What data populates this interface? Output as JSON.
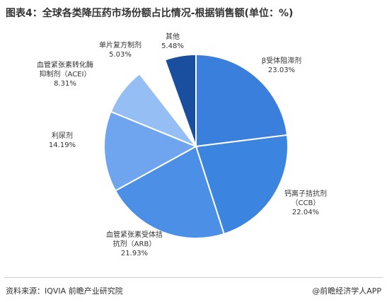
{
  "chart_data": {
    "type": "pie",
    "title": "图表4：全球各类降压药市场份额占比情况-根据销售额(单位：%)",
    "categories": [
      "β受体阻滞剂",
      "钙离子拮抗剂\n（CCB）",
      "血管紧张素受体拮\n抗剂（ARB）",
      "利尿剂",
      "血管紧张素转化酶\n抑制剂（ACEI）",
      "单片复方制剂",
      "其他"
    ],
    "values": [
      23.03,
      22.04,
      21.93,
      14.19,
      8.31,
      5.03,
      5.48
    ],
    "value_labels": [
      "23.03%",
      "22.04%",
      "21.93%",
      "14.19%",
      "8.31%",
      "5.03%",
      "5.48%"
    ],
    "colors": [
      "#3a7fdc",
      "#3b84e0",
      "#4b8fe6",
      "#6ea5ee",
      "#94bef4",
      "#ffffff",
      "#1a4e9e"
    ],
    "source": "资料来源：IQVIA 前瞻产业研究院",
    "credit": "@前瞻经济学人APP"
  }
}
